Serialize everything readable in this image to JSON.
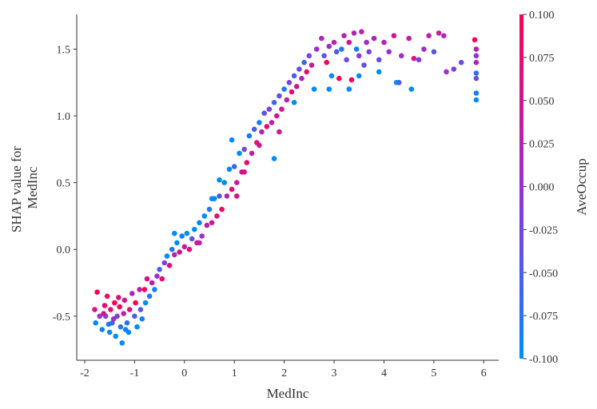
{
  "chart_data": {
    "type": "scatter",
    "title": "",
    "xlabel": "MedInc",
    "ylabel_lines": [
      "SHAP value for",
      "MedInc"
    ],
    "xlim": [
      -2.16,
      6.3
    ],
    "ylim": [
      -0.83,
      1.76
    ],
    "xticks": [
      -2,
      -1,
      0,
      1,
      2,
      3,
      4,
      5,
      6
    ],
    "xtick_labels": [
      "-2",
      "-1",
      "0",
      "1",
      "2",
      "3",
      "4",
      "5",
      "6"
    ],
    "yticks": [
      -0.5,
      0.0,
      0.5,
      1.0,
      1.5
    ],
    "ytick_labels": [
      "-0.5",
      "0.0",
      "0.5",
      "1.0",
      "1.5"
    ],
    "grid": false,
    "colorbar": {
      "label": "AveOccup",
      "range": [
        -0.1,
        0.1
      ],
      "ticks": [
        0.1,
        0.075,
        0.05,
        0.025,
        0.0,
        -0.025,
        -0.05,
        -0.075,
        -0.1
      ],
      "tick_labels": [
        "0.100",
        "0.075",
        "0.050",
        "0.025",
        "0.000",
        "-0.025",
        "-0.050",
        "-0.075",
        "-0.100"
      ],
      "colors": [
        "#008bfb",
        "#9a2fd2",
        "#ff0052"
      ]
    },
    "points_format": [
      "MedInc",
      "SHAP",
      "AveOccup"
    ],
    "points": [
      [
        -1.8,
        -0.45,
        0.06
      ],
      [
        -1.78,
        -0.55,
        -0.1
      ],
      [
        -1.75,
        -0.32,
        0.1
      ],
      [
        -1.7,
        -0.5,
        0.0
      ],
      [
        -1.65,
        -0.6,
        -0.09
      ],
      [
        -1.6,
        -0.42,
        0.08
      ],
      [
        -1.58,
        -0.5,
        -0.03
      ],
      [
        -1.55,
        -0.35,
        0.09
      ],
      [
        -1.5,
        -0.62,
        -0.1
      ],
      [
        -1.48,
        -0.45,
        0.07
      ],
      [
        -1.45,
        -0.55,
        -0.05
      ],
      [
        -1.4,
        -0.4,
        0.1
      ],
      [
        -1.38,
        -0.65,
        -0.1
      ],
      [
        -1.35,
        -0.5,
        -0.02
      ],
      [
        -1.3,
        -0.43,
        0.09
      ],
      [
        -1.28,
        -0.58,
        -0.08
      ],
      [
        -1.25,
        -0.7,
        -0.1
      ],
      [
        -1.22,
        -0.48,
        0.03
      ],
      [
        -1.2,
        -0.38,
        0.05
      ],
      [
        -1.15,
        -0.55,
        -0.07
      ],
      [
        -1.12,
        -0.62,
        -0.1
      ],
      [
        -1.1,
        -0.45,
        0.06
      ],
      [
        -1.05,
        -0.33,
        0.02
      ],
      [
        -1.0,
        -0.5,
        -0.06
      ],
      [
        -0.98,
        -0.4,
        0.1
      ],
      [
        -0.95,
        -0.58,
        -0.1
      ],
      [
        -0.9,
        -0.3,
        0.04
      ],
      [
        -0.88,
        -0.45,
        -0.04
      ],
      [
        -0.85,
        -0.52,
        -0.09
      ],
      [
        -0.8,
        -0.3,
        0.09
      ],
      [
        -0.78,
        -0.4,
        -0.1
      ],
      [
        -0.75,
        -0.22,
        0.06
      ],
      [
        -0.7,
        -0.35,
        -0.08
      ],
      [
        -0.65,
        -0.25,
        0.03
      ],
      [
        -0.6,
        -0.3,
        -0.09
      ],
      [
        -1.62,
        -0.48,
        0.05
      ],
      [
        -1.42,
        -0.52,
        0.0
      ],
      [
        -1.18,
        -0.6,
        -0.09
      ],
      [
        -1.32,
        -0.36,
        0.07
      ],
      [
        -1.52,
        -0.56,
        -0.08
      ],
      [
        -0.55,
        -0.2,
        0.0
      ],
      [
        -0.5,
        -0.15,
        -0.05
      ],
      [
        -0.45,
        -0.22,
        0.08
      ],
      [
        -0.4,
        -0.1,
        -0.02
      ],
      [
        -0.35,
        -0.05,
        -0.1
      ],
      [
        -0.3,
        -0.12,
        0.06
      ],
      [
        -0.25,
        0.0,
        -0.08
      ],
      [
        -0.2,
        -0.04,
        0.02
      ],
      [
        -0.15,
        0.05,
        -0.1
      ],
      [
        -0.1,
        -0.02,
        0.05
      ],
      [
        -0.05,
        0.1,
        -0.09
      ],
      [
        0.0,
        0.02,
        0.04
      ],
      [
        0.05,
        0.12,
        -0.1
      ],
      [
        0.1,
        0.0,
        0.07
      ],
      [
        0.15,
        0.08,
        -0.04
      ],
      [
        0.2,
        0.15,
        -0.1
      ],
      [
        0.25,
        0.05,
        0.06
      ],
      [
        0.3,
        0.2,
        -0.09
      ],
      [
        0.35,
        0.1,
        0.0
      ],
      [
        0.4,
        0.25,
        -0.1
      ],
      [
        0.45,
        0.18,
        0.03
      ],
      [
        0.5,
        0.3,
        -0.08
      ],
      [
        0.55,
        0.2,
        0.05
      ],
      [
        0.6,
        0.38,
        -0.1
      ],
      [
        0.65,
        0.25,
        0.06
      ],
      [
        0.7,
        0.4,
        -0.05
      ],
      [
        0.75,
        0.3,
        0.08
      ],
      [
        0.8,
        0.5,
        -0.1
      ],
      [
        0.85,
        0.4,
        0.02
      ],
      [
        0.9,
        0.6,
        -0.09
      ],
      [
        0.95,
        0.45,
        0.07
      ],
      [
        1.0,
        0.62,
        -0.06
      ],
      [
        1.05,
        0.5,
        0.04
      ],
      [
        1.1,
        0.72,
        -0.1
      ],
      [
        1.15,
        0.58,
        0.05
      ],
      [
        1.2,
        0.75,
        -0.03
      ],
      [
        1.25,
        0.65,
        0.08
      ],
      [
        1.3,
        0.85,
        -0.08
      ],
      [
        1.35,
        0.72,
        0.03
      ],
      [
        1.4,
        0.9,
        -0.05
      ],
      [
        1.45,
        0.8,
        0.06
      ],
      [
        1.5,
        0.95,
        -0.09
      ],
      [
        1.55,
        0.88,
        0.02
      ],
      [
        1.6,
        1.02,
        -0.04
      ],
      [
        1.65,
        0.92,
        0.07
      ],
      [
        1.7,
        1.05,
        -0.02
      ],
      [
        1.75,
        0.95,
        0.04
      ],
      [
        1.8,
        1.1,
        -0.06
      ],
      [
        1.85,
        1.0,
        0.05
      ],
      [
        1.9,
        1.15,
        -0.03
      ],
      [
        1.95,
        1.05,
        0.06
      ],
      [
        2.0,
        1.2,
        -0.08
      ],
      [
        2.05,
        1.12,
        0.03
      ],
      [
        2.1,
        1.25,
        -0.02
      ],
      [
        2.15,
        1.18,
        0.07
      ],
      [
        2.2,
        1.3,
        -0.05
      ],
      [
        2.25,
        1.22,
        0.05
      ],
      [
        2.3,
        1.35,
        -0.03
      ],
      [
        2.35,
        1.28,
        0.02
      ],
      [
        2.4,
        1.4,
        -0.06
      ],
      [
        2.45,
        1.33,
        0.08
      ],
      [
        2.5,
        1.45,
        -0.02
      ],
      [
        2.55,
        1.38,
        0.04
      ],
      [
        2.6,
        1.2,
        -0.1
      ],
      [
        2.65,
        1.5,
        0.0
      ],
      [
        0.3,
        0.05,
        0.03
      ],
      [
        0.7,
        0.52,
        -0.1
      ],
      [
        1.2,
        0.58,
        0.06
      ],
      [
        1.8,
        0.68,
        -0.1
      ],
      [
        0.95,
        0.82,
        -0.1
      ],
      [
        1.5,
        0.78,
        0.05
      ],
      [
        2.2,
        1.1,
        -0.1
      ],
      [
        1.9,
        0.88,
        0.04
      ],
      [
        -0.2,
        0.12,
        -0.1
      ],
      [
        0.55,
        0.38,
        -0.1
      ],
      [
        1.05,
        0.4,
        0.06
      ],
      [
        2.75,
        1.58,
        0.02
      ],
      [
        2.8,
        1.45,
        -0.04
      ],
      [
        2.85,
        1.4,
        0.1
      ],
      [
        2.9,
        1.52,
        0.01
      ],
      [
        2.95,
        1.3,
        -0.1
      ],
      [
        3.0,
        1.55,
        0.02
      ],
      [
        3.05,
        1.48,
        -0.05
      ],
      [
        3.1,
        1.28,
        0.1
      ],
      [
        3.15,
        1.5,
        -0.08
      ],
      [
        3.2,
        1.6,
        0.03
      ],
      [
        3.25,
        1.42,
        -0.03
      ],
      [
        3.3,
        1.55,
        0.05
      ],
      [
        3.35,
        1.27,
        0.1
      ],
      [
        3.4,
        1.62,
        0.02
      ],
      [
        3.45,
        1.5,
        -0.09
      ],
      [
        3.5,
        1.45,
        0.0
      ],
      [
        3.55,
        1.63,
        0.03
      ],
      [
        3.6,
        1.38,
        -0.04
      ],
      [
        3.65,
        1.55,
        0.01
      ],
      [
        3.7,
        1.48,
        -0.02
      ],
      [
        3.8,
        1.58,
        0.02
      ],
      [
        3.9,
        1.42,
        -0.03
      ],
      [
        4.0,
        1.55,
        0.03
      ],
      [
        4.1,
        1.48,
        0.0
      ],
      [
        4.2,
        1.6,
        0.05
      ],
      [
        4.3,
        1.25,
        -0.02
      ],
      [
        4.35,
        1.45,
        0.0
      ],
      [
        4.5,
        1.58,
        0.04
      ],
      [
        4.55,
        1.2,
        -0.1
      ],
      [
        4.6,
        1.43,
        0.06
      ],
      [
        4.7,
        1.42,
        -0.02
      ],
      [
        4.8,
        1.5,
        0.01
      ],
      [
        4.9,
        1.6,
        0.03
      ],
      [
        5.0,
        1.48,
        -0.04
      ],
      [
        5.1,
        1.62,
        0.04
      ],
      [
        5.2,
        1.6,
        0.02
      ],
      [
        5.25,
        1.33,
        0.0
      ],
      [
        5.4,
        1.35,
        -0.02
      ],
      [
        5.55,
        1.4,
        -0.03
      ],
      [
        5.82,
        1.57,
        0.1
      ],
      [
        5.85,
        1.5,
        0.03
      ],
      [
        5.85,
        1.45,
        0.0
      ],
      [
        5.85,
        1.4,
        0.02
      ],
      [
        5.85,
        1.32,
        -0.07
      ],
      [
        5.85,
        1.28,
        -0.03
      ],
      [
        5.85,
        1.17,
        -0.09
      ],
      [
        5.85,
        1.12,
        -0.1
      ],
      [
        3.3,
        1.2,
        -0.1
      ],
      [
        3.5,
        1.3,
        -0.1
      ],
      [
        2.9,
        1.2,
        -0.1
      ],
      [
        3.9,
        1.33,
        -0.1
      ],
      [
        4.25,
        1.25,
        -0.1
      ]
    ]
  }
}
